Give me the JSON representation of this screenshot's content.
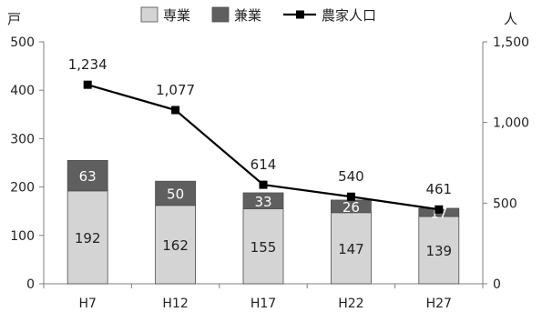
{
  "chart_data": {
    "type": "bar",
    "combo": "stacked-bar-with-line",
    "categories": [
      "H7",
      "H12",
      "H17",
      "H22",
      "H27"
    ],
    "series": [
      {
        "name": "専業",
        "kind": "bar",
        "axis": "left",
        "color": "#d4d4d4",
        "values": [
          192,
          162,
          155,
          147,
          139
        ]
      },
      {
        "name": "兼業",
        "kind": "bar",
        "axis": "left",
        "color": "#5f5f5f",
        "values": [
          63,
          50,
          33,
          26,
          17
        ]
      },
      {
        "name": "農家人口",
        "kind": "line",
        "axis": "right",
        "color": "#000000",
        "marker": "square",
        "values": [
          1234,
          1077,
          614,
          540,
          461
        ]
      }
    ],
    "left_axis": {
      "unit": "戸",
      "ylim": [
        0,
        500
      ],
      "ticks": [
        0,
        100,
        200,
        300,
        400,
        500
      ],
      "tick_labels": [
        "0",
        "100",
        "200",
        "300",
        "400",
        "500"
      ]
    },
    "right_axis": {
      "unit": "人",
      "ylim": [
        0,
        1500
      ],
      "ticks": [
        0,
        500,
        1000,
        1500
      ],
      "tick_labels": [
        "0",
        "500",
        "1,000",
        "1,500"
      ]
    },
    "data_labels": {
      "専業": [
        "192",
        "162",
        "155",
        "147",
        "139"
      ],
      "兼業": [
        "63",
        "50",
        "33",
        "26",
        "17"
      ],
      "農家人口": [
        "1,234",
        "1,077",
        "614",
        "540",
        "461"
      ]
    },
    "legend": {
      "position": "top",
      "items": [
        "専業",
        "兼業",
        "農家人口"
      ]
    },
    "grid": false
  }
}
